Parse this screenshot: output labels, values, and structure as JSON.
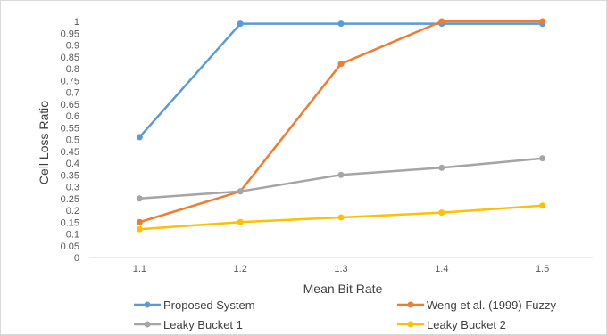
{
  "chart_data": {
    "type": "line",
    "title": "",
    "xlabel": "Mean Bit Rate",
    "ylabel": "Cell Loss Ratio",
    "categories": [
      "1.1",
      "1.2",
      "1.3",
      "1.4",
      "1.5"
    ],
    "y_ticks": [
      "0",
      "0.05",
      "0.1",
      "0.15",
      "0.2",
      "0.25",
      "0.3",
      "0.35",
      "0.4",
      "0.45",
      "0.5",
      "0.55",
      "0.6",
      "0.65",
      "0.7",
      "0.75",
      "0.8",
      "0.85",
      "0.9",
      "0.95",
      "1"
    ],
    "ylim": [
      0,
      1
    ],
    "grid": false,
    "legend_position": "bottom",
    "series": [
      {
        "name": "Proposed System",
        "color": "#5B9BD5",
        "values": [
          0.51,
          0.99,
          0.99,
          0.99,
          0.99
        ]
      },
      {
        "name": "Weng et al. (1999) Fuzzy",
        "color": "#ED7D31",
        "values": [
          0.15,
          0.28,
          0.82,
          1.0,
          1.0
        ]
      },
      {
        "name": "Leaky Bucket 1",
        "color": "#A5A5A5",
        "values": [
          0.25,
          0.28,
          0.35,
          0.38,
          0.42
        ]
      },
      {
        "name": "Leaky Bucket 2",
        "color": "#FFC000",
        "values": [
          0.12,
          0.15,
          0.17,
          0.19,
          0.22
        ]
      }
    ]
  }
}
